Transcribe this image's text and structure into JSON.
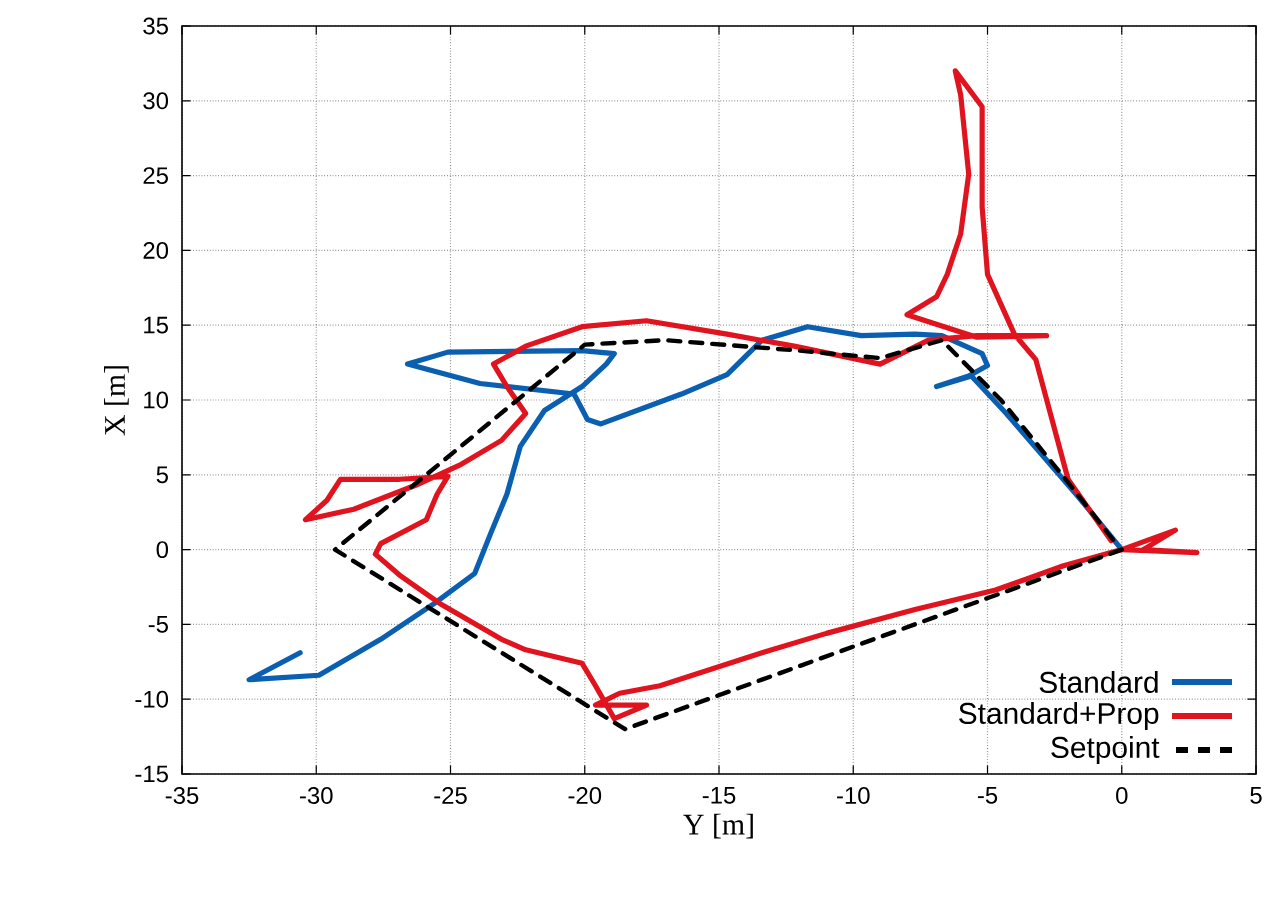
{
  "chart_data": {
    "type": "line",
    "xlabel": "Y [m]",
    "ylabel": "X [m]",
    "xlim": [
      -35,
      5
    ],
    "ylim": [
      -15,
      35
    ],
    "xticks": [
      -35,
      -30,
      -25,
      -20,
      -15,
      -10,
      -5,
      0,
      5
    ],
    "yticks": [
      -15,
      -10,
      -5,
      0,
      5,
      10,
      15,
      20,
      25,
      30,
      35
    ],
    "grid": true,
    "legend": "bottom right",
    "series": [
      {
        "name": "Standard",
        "color": "#0a5fb0",
        "line_style": "solid",
        "x": [
          -30.6,
          -32.5,
          -29.9,
          -27.6,
          -25.6,
          -24.1,
          -23.5,
          -22.9,
          -22.4,
          -21.5,
          -20.1,
          -19.2,
          -18.9,
          -20.1,
          -25.1,
          -26.6,
          -23.9,
          -20.4,
          -19.9,
          -19.4,
          -16.4,
          -14.7,
          -13.4,
          -11.7,
          -9.7,
          -7.7,
          -6.7,
          -5.2,
          -5.0,
          -5.7,
          -6.9,
          -5.6,
          -4.3,
          -3.0,
          -1.7,
          -0.5,
          0.0
        ],
        "values": [
          -6.9,
          -8.7,
          -8.4,
          -6.0,
          -3.6,
          -1.6,
          1.1,
          3.7,
          6.9,
          9.3,
          10.9,
          12.4,
          13.1,
          13.3,
          13.2,
          12.4,
          11.1,
          10.4,
          8.7,
          8.4,
          10.4,
          11.7,
          14.0,
          14.9,
          14.3,
          14.4,
          14.3,
          13.1,
          12.3,
          11.6,
          10.9,
          11.6,
          9.1,
          6.4,
          3.7,
          1.1,
          0.0
        ]
      },
      {
        "name": "Standard+Prop",
        "color": "#e0141e",
        "line_style": "solid",
        "x": [
          0.0,
          2.0,
          0.8,
          2.8,
          0.0,
          -2.2,
          -4.7,
          -7.7,
          -11.0,
          -13.4,
          -17.2,
          -18.7,
          -19.6,
          -17.7,
          -18.9,
          -19.6,
          -20.1,
          -22.2,
          -23.1,
          -25.4,
          -26.9,
          -27.8,
          -27.6,
          -25.9,
          -25.5,
          -25.1,
          -26.9,
          -29.1,
          -29.6,
          -30.4,
          -28.6,
          -26.3,
          -24.6,
          -23.1,
          -22.2,
          -22.9,
          -23.4,
          -22.2,
          -20.1,
          -17.7,
          -14.7,
          -12.2,
          -9.0,
          -7.2,
          -5.4,
          -2.8,
          -5.4,
          -8.0,
          -6.9,
          -6.5,
          -6.0,
          -5.7,
          -6.0,
          -6.2,
          -5.2,
          -5.2,
          -5.0,
          -4.0,
          -3.2,
          -2.0,
          -0.4
        ],
        "values": [
          0.0,
          1.3,
          0.0,
          -0.2,
          0.0,
          -1.1,
          -2.7,
          -4.0,
          -5.6,
          -6.9,
          -9.1,
          -9.6,
          -10.4,
          -10.4,
          -11.3,
          -9.1,
          -7.6,
          -6.7,
          -6.0,
          -3.6,
          -1.7,
          -0.3,
          0.4,
          2.0,
          3.7,
          4.9,
          4.7,
          4.7,
          3.3,
          2.0,
          2.7,
          4.3,
          5.7,
          7.3,
          9.1,
          10.9,
          12.4,
          13.6,
          14.9,
          15.3,
          14.4,
          13.6,
          12.4,
          14.0,
          14.3,
          14.3,
          14.2,
          15.7,
          16.9,
          18.4,
          21.1,
          25.1,
          30.4,
          32.0,
          29.6,
          22.9,
          18.4,
          14.4,
          12.7,
          4.7,
          0.6
        ]
      },
      {
        "name": "Setpoint",
        "color": "#000000",
        "line_style": "dashed",
        "x": [
          0.0,
          -18.5,
          -29.3,
          -20.0,
          -17.0,
          -12.0,
          -9.0,
          -6.7,
          -4.5,
          -2.0,
          -0.3
        ],
        "values": [
          0.0,
          -12.0,
          0.0,
          13.7,
          14.0,
          13.3,
          12.8,
          14.0,
          10.0,
          4.5,
          0.6
        ]
      }
    ]
  }
}
